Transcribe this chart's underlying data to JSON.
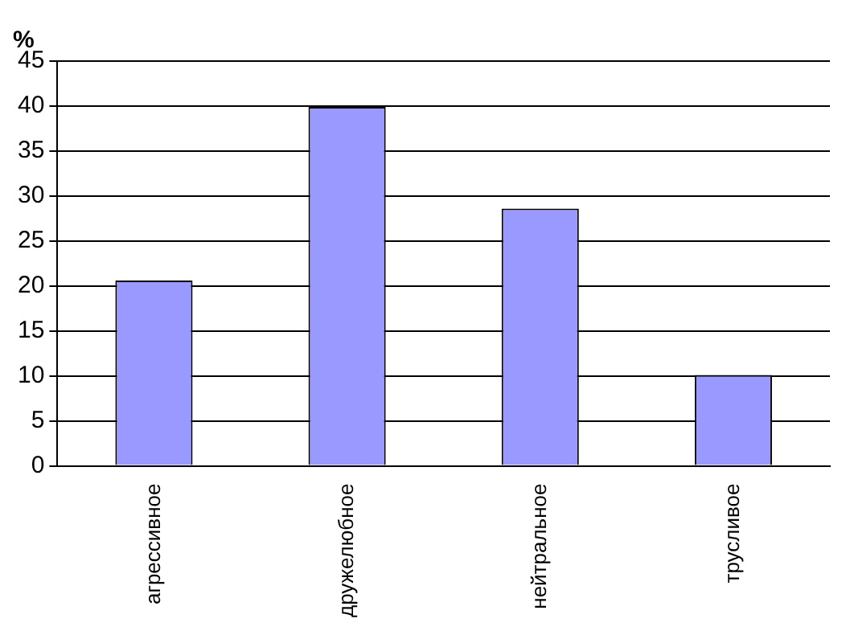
{
  "chart_data": {
    "type": "bar",
    "ylabel": "%",
    "categories": [
      "агрессивное",
      "дружелюбное",
      "нейтральное",
      "трусливое"
    ],
    "values": [
      20.6,
      39.9,
      28.6,
      10.1
    ],
    "color": "#9999ff",
    "ylim": [
      0,
      45
    ],
    "yticks": [
      0,
      5,
      10,
      15,
      20,
      25,
      30,
      35,
      40,
      45
    ],
    "grid": "y"
  }
}
